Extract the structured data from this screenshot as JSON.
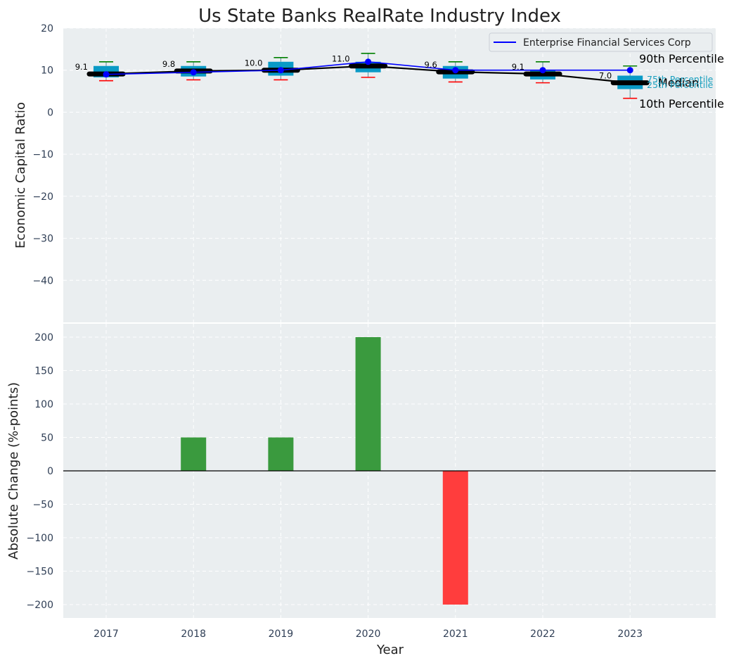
{
  "chart_data": [
    {
      "type": "box",
      "title": "Us State Banks RealRate Industry Index",
      "xlabel": "",
      "ylabel": "Economic Capital Ratio",
      "ylim": [
        -50,
        20
      ],
      "yticks": [
        20,
        10,
        0,
        -10,
        -20,
        -30,
        -40
      ],
      "ytick_labels": [
        "20",
        "10",
        "0",
        "−10",
        "−20",
        "−30",
        "−40"
      ],
      "categories": [
        "2017",
        "2018",
        "2019",
        "2020",
        "2021",
        "2022",
        "2023"
      ],
      "percentiles": {
        "p90": [
          12.0,
          12.0,
          13.0,
          14.0,
          12.0,
          12.0,
          11.0
        ],
        "p75": [
          11.0,
          11.0,
          12.0,
          12.0,
          11.0,
          10.0,
          8.7
        ],
        "median": [
          9.1,
          9.8,
          10.0,
          11.0,
          9.6,
          9.1,
          7.0
        ],
        "p25": [
          8.3,
          8.5,
          8.7,
          9.5,
          8.0,
          7.8,
          5.5
        ],
        "p10": [
          7.5,
          7.7,
          7.7,
          8.3,
          7.2,
          7.0,
          3.3
        ]
      },
      "median_labels": [
        "9.1",
        "9.8",
        "10.0",
        "11.0",
        "9.6",
        "9.1",
        "7.0"
      ],
      "company_series": {
        "name": "Enterprise Financial Services Corp",
        "values": [
          9.0,
          9.5,
          10.0,
          12.0,
          10.0,
          10.0,
          10.0
        ]
      },
      "legend": {
        "position": "top-right",
        "entries": [
          "Enterprise Financial Services Corp"
        ]
      },
      "annotations": {
        "p90": "90th Percentile",
        "p75": "75th Percentile",
        "median": "Median",
        "p25": "25th Percentile",
        "p10": "10th Percentile"
      },
      "grid": true,
      "colors": {
        "box": "#0a9ac6",
        "median": "#000000",
        "series": "#0000ff",
        "whisker_top": "#008000",
        "whisker_bottom": "#ff0000",
        "plot_bg": "#eaeef0"
      }
    },
    {
      "type": "bar",
      "title": "",
      "xlabel": "Year",
      "ylabel": "Absolute Change (%-points)",
      "ylim": [
        -220,
        220
      ],
      "yticks": [
        200,
        150,
        100,
        50,
        0,
        -50,
        -100,
        -150,
        -200
      ],
      "ytick_labels": [
        "200",
        "150",
        "100",
        "50",
        "0",
        "−50",
        "−100",
        "−150",
        "−200"
      ],
      "categories": [
        "2017",
        "2018",
        "2019",
        "2020",
        "2021",
        "2022",
        "2023"
      ],
      "values": [
        0,
        50,
        50,
        200,
        -200,
        0,
        0
      ],
      "grid": true,
      "colors": {
        "positive": "#3a9a3e",
        "negative": "#ff3d3d",
        "zero_line": "#000000"
      }
    }
  ]
}
